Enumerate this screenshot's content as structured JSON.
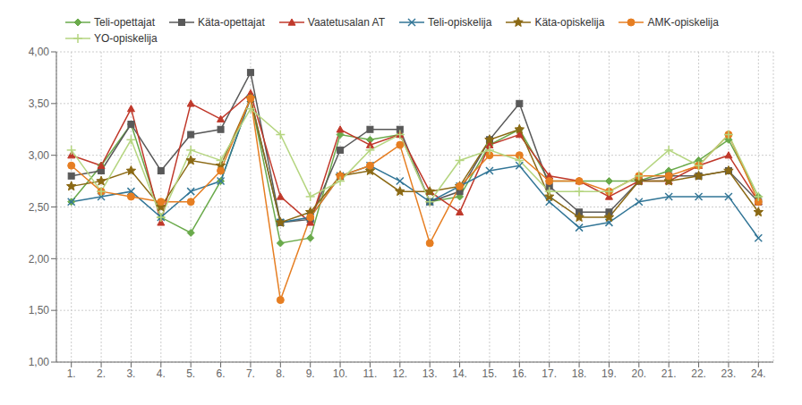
{
  "chart_data": {
    "type": "line",
    "x": [
      1,
      2,
      3,
      4,
      5,
      6,
      7,
      8,
      9,
      10,
      11,
      12,
      13,
      14,
      15,
      16,
      17,
      18,
      19,
      20,
      21,
      22,
      23,
      24
    ],
    "xlim": [
      0.5,
      24.5
    ],
    "xticks": [
      {
        "value": 1,
        "label": "1."
      },
      {
        "value": 2,
        "label": "2."
      },
      {
        "value": 3,
        "label": "3."
      },
      {
        "value": 4,
        "label": "4."
      },
      {
        "value": 5,
        "label": "5."
      },
      {
        "value": 6,
        "label": "6."
      },
      {
        "value": 7,
        "label": "7."
      },
      {
        "value": 8,
        "label": "8."
      },
      {
        "value": 9,
        "label": "9."
      },
      {
        "value": 10,
        "label": "10."
      },
      {
        "value": 11,
        "label": "11."
      },
      {
        "value": 12,
        "label": "12."
      },
      {
        "value": 13,
        "label": "13."
      },
      {
        "value": 14,
        "label": "14."
      },
      {
        "value": 15,
        "label": "15."
      },
      {
        "value": 16,
        "label": "16."
      },
      {
        "value": 17,
        "label": "17."
      },
      {
        "value": 18,
        "label": "18."
      },
      {
        "value": 19,
        "label": "19."
      },
      {
        "value": 20,
        "label": "20."
      },
      {
        "value": 21,
        "label": "21."
      },
      {
        "value": 22,
        "label": "22."
      },
      {
        "value": 23,
        "label": "23."
      },
      {
        "value": 24,
        "label": "24."
      }
    ],
    "ylim": [
      1.0,
      4.0
    ],
    "yticks": [
      {
        "value": 1.0,
        "label": "1,00"
      },
      {
        "value": 1.5,
        "label": "1,50"
      },
      {
        "value": 2.0,
        "label": "2,00"
      },
      {
        "value": 2.5,
        "label": "2,50"
      },
      {
        "value": 3.0,
        "label": "3,00"
      },
      {
        "value": 3.5,
        "label": "3,50"
      },
      {
        "value": 4.0,
        "label": "4,00"
      }
    ],
    "grid": true,
    "legend": "top",
    "series": [
      {
        "name": "Teli-opettajat",
        "color": "#6aaa4b",
        "marker": "diamond",
        "line_style": "solid",
        "values": [
          2.55,
          2.9,
          3.3,
          2.4,
          2.25,
          2.75,
          3.55,
          2.15,
          2.2,
          3.2,
          3.15,
          3.2,
          2.55,
          2.6,
          3.1,
          3.25,
          2.75,
          2.75,
          2.75,
          2.75,
          2.85,
          2.95,
          3.15,
          2.6
        ]
      },
      {
        "name": "Käta-opettajat",
        "color": "#595959",
        "marker": "square",
        "line_style": "solid",
        "values": [
          2.8,
          2.85,
          3.3,
          2.85,
          3.2,
          3.25,
          3.8,
          2.35,
          2.38,
          3.05,
          3.25,
          3.25,
          2.55,
          2.65,
          3.15,
          3.5,
          2.7,
          2.45,
          2.45,
          2.75,
          2.8,
          2.8,
          2.85,
          2.55
        ]
      },
      {
        "name": "Vaatetusalan AT",
        "color": "#c0392b",
        "marker": "triangle",
        "line_style": "solid",
        "values": [
          3.0,
          2.9,
          3.45,
          2.35,
          3.5,
          3.35,
          3.6,
          2.6,
          2.35,
          3.25,
          3.1,
          3.2,
          2.65,
          2.45,
          3.1,
          3.2,
          2.8,
          2.75,
          2.6,
          2.75,
          2.75,
          2.9,
          3.0,
          2.55
        ]
      },
      {
        "name": "Teli-opiskelija",
        "color": "#317596",
        "marker": "x",
        "line_style": "solid",
        "values": [
          2.55,
          2.6,
          2.65,
          2.4,
          2.65,
          2.75,
          3.55,
          2.35,
          2.4,
          2.8,
          2.9,
          2.75,
          2.55,
          2.7,
          2.85,
          2.9,
          2.55,
          2.3,
          2.35,
          2.55,
          2.6,
          2.6,
          2.6,
          2.2
        ]
      },
      {
        "name": "Käta-opiskelija",
        "color": "#8b6914",
        "marker": "star",
        "line_style": "solid",
        "values": [
          2.7,
          2.75,
          2.85,
          2.5,
          2.95,
          2.9,
          3.55,
          2.35,
          2.45,
          2.8,
          2.85,
          2.65,
          2.65,
          2.7,
          3.15,
          3.25,
          2.6,
          2.4,
          2.4,
          2.75,
          2.75,
          2.8,
          2.85,
          2.45
        ]
      },
      {
        "name": "AMK-opiskelija",
        "color": "#e67e22",
        "marker": "circle",
        "line_style": "solid",
        "values": [
          2.9,
          2.65,
          2.6,
          2.55,
          2.55,
          2.85,
          3.55,
          1.6,
          2.4,
          2.8,
          2.9,
          3.1,
          2.15,
          2.7,
          3.0,
          3.0,
          2.75,
          2.75,
          2.65,
          2.8,
          2.8,
          2.9,
          3.2,
          2.55
        ]
      },
      {
        "name": "YO-opiskelija",
        "color": "#b5d580",
        "marker": "plus",
        "line_style": "solid",
        "values": [
          3.05,
          2.65,
          3.15,
          2.4,
          3.05,
          2.95,
          3.45,
          3.2,
          2.6,
          2.75,
          3.05,
          3.2,
          2.55,
          2.95,
          3.05,
          2.95,
          2.65,
          2.65,
          2.65,
          2.8,
          3.05,
          2.9,
          3.2,
          2.6
        ]
      }
    ]
  }
}
